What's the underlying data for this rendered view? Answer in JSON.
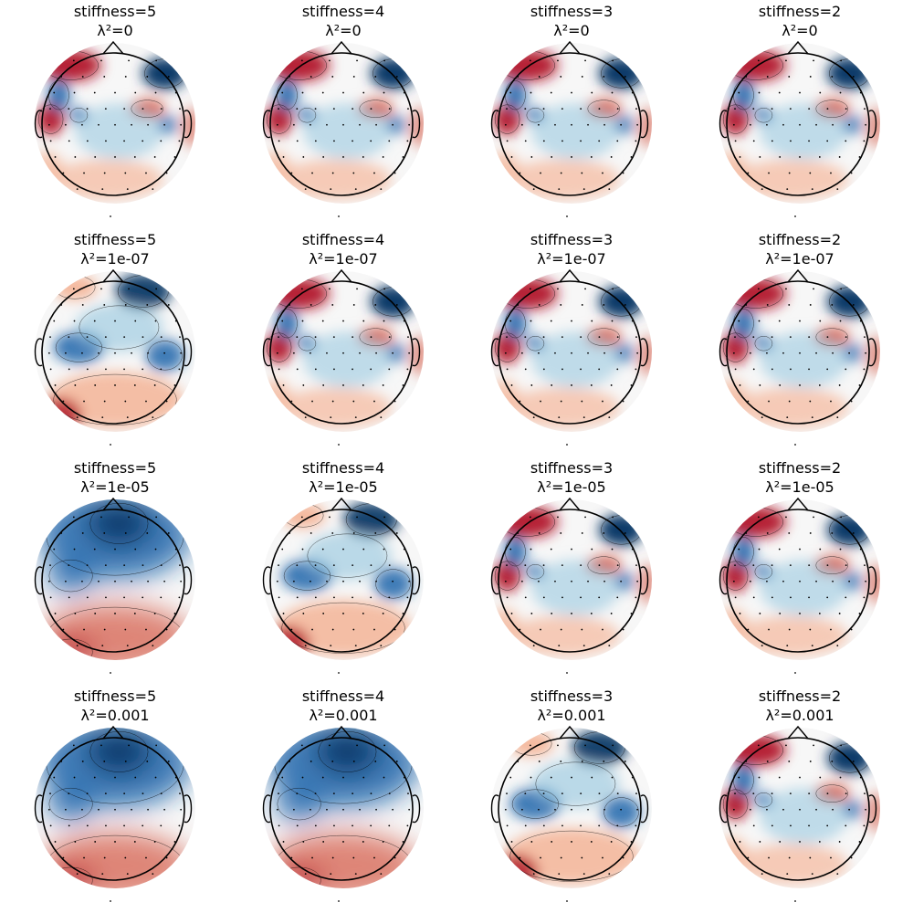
{
  "chart_data": {
    "type": "heatmap",
    "description_kind": "grid of EEG scalp topographic maps",
    "rows": 4,
    "cols": 4,
    "colormap": "RdBu_r",
    "colors": {
      "strong_negative": "#053061",
      "negative": "#2166ac",
      "weak_negative": "#92c5de",
      "neutral": "#f7f7f7",
      "weak_positive": "#f4a582",
      "positive": "#d6604d",
      "strong_positive": "#b2182b",
      "outline": "#000000"
    },
    "panels": [
      {
        "title_line1": "stiffness=5",
        "title_line2": "λ²=0",
        "stiffness": 5,
        "lambda2": 0,
        "pattern": "sharp"
      },
      {
        "title_line1": "stiffness=4",
        "title_line2": "λ²=0",
        "stiffness": 4,
        "lambda2": 0,
        "pattern": "sharp"
      },
      {
        "title_line1": "stiffness=3",
        "title_line2": "λ²=0",
        "stiffness": 3,
        "lambda2": 0,
        "pattern": "sharp"
      },
      {
        "title_line1": "stiffness=2",
        "title_line2": "λ²=0",
        "stiffness": 2,
        "lambda2": 0,
        "pattern": "sharp"
      },
      {
        "title_line1": "stiffness=5",
        "title_line2": "λ²=1e-07",
        "stiffness": 5,
        "lambda2": 1e-07,
        "pattern": "medium"
      },
      {
        "title_line1": "stiffness=4",
        "title_line2": "λ²=1e-07",
        "stiffness": 4,
        "lambda2": 1e-07,
        "pattern": "sharp"
      },
      {
        "title_line1": "stiffness=3",
        "title_line2": "λ²=1e-07",
        "stiffness": 3,
        "lambda2": 1e-07,
        "pattern": "sharp"
      },
      {
        "title_line1": "stiffness=2",
        "title_line2": "λ²=1e-07",
        "stiffness": 2,
        "lambda2": 1e-07,
        "pattern": "sharp"
      },
      {
        "title_line1": "stiffness=5",
        "title_line2": "λ²=1e-05",
        "stiffness": 5,
        "lambda2": 1e-05,
        "pattern": "smooth"
      },
      {
        "title_line1": "stiffness=4",
        "title_line2": "λ²=1e-05",
        "stiffness": 4,
        "lambda2": 1e-05,
        "pattern": "medium"
      },
      {
        "title_line1": "stiffness=3",
        "title_line2": "λ²=1e-05",
        "stiffness": 3,
        "lambda2": 1e-05,
        "pattern": "sharp"
      },
      {
        "title_line1": "stiffness=2",
        "title_line2": "λ²=1e-05",
        "stiffness": 2,
        "lambda2": 1e-05,
        "pattern": "sharp"
      },
      {
        "title_line1": "stiffness=5",
        "title_line2": "λ²=0.001",
        "stiffness": 5,
        "lambda2": 0.001,
        "pattern": "smooth"
      },
      {
        "title_line1": "stiffness=4",
        "title_line2": "λ²=0.001",
        "stiffness": 4,
        "lambda2": 0.001,
        "pattern": "smooth"
      },
      {
        "title_line1": "stiffness=3",
        "title_line2": "λ²=0.001",
        "stiffness": 3,
        "lambda2": 0.001,
        "pattern": "medium"
      },
      {
        "title_line1": "stiffness=2",
        "title_line2": "λ²=0.001",
        "stiffness": 2,
        "lambda2": 0.001,
        "pattern": "sharp"
      }
    ]
  }
}
